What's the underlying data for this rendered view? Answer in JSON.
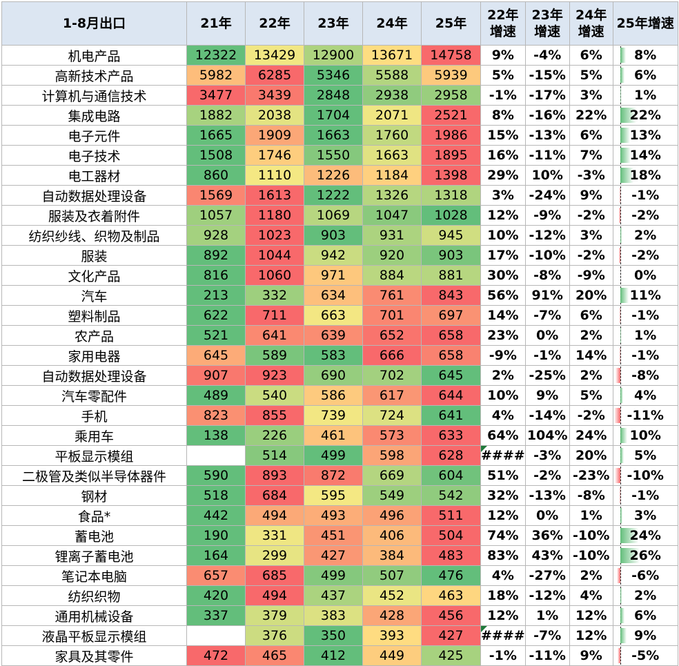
{
  "header": {
    "item": "1-8月出口",
    "years": [
      "21年",
      "22年",
      "23年",
      "24年",
      "25年"
    ],
    "growth": [
      "22年增速",
      "23年增速",
      "24年增速",
      "25年增速"
    ]
  },
  "colors": {
    "header_bg": "#dce6f2",
    "heat_low": "#63be7b",
    "heat_mid": "#ffeb84",
    "heat_high": "#f8696b",
    "bar_positive": "#63be7b",
    "bar_negative": "#f8696b"
  },
  "chart_data": {
    "type": "table",
    "title": "1-8月出口",
    "columns": [
      "21年",
      "22年",
      "23年",
      "24年",
      "25年",
      "22年增速",
      "23年增速",
      "24年增速",
      "25年增速"
    ],
    "rows": [
      {
        "name": "机电产品",
        "values": [
          12322,
          13429,
          12900,
          13671,
          14758
        ],
        "growth": [
          "9%",
          "-4%",
          "6%",
          "8%"
        ]
      },
      {
        "name": "高新技术产品",
        "values": [
          5982,
          6285,
          5346,
          5588,
          5939
        ],
        "growth": [
          "5%",
          "-15%",
          "5%",
          "6%"
        ]
      },
      {
        "name": "计算机与通信技术",
        "values": [
          3477,
          3439,
          2848,
          2938,
          2958
        ],
        "growth": [
          "-1%",
          "-17%",
          "3%",
          "1%"
        ]
      },
      {
        "name": "集成电路",
        "values": [
          1882,
          2038,
          1704,
          2071,
          2521
        ],
        "growth": [
          "8%",
          "-16%",
          "22%",
          "22%"
        ]
      },
      {
        "name": "电子元件",
        "values": [
          1665,
          1909,
          1663,
          1760,
          1986
        ],
        "growth": [
          "15%",
          "-13%",
          "6%",
          "13%"
        ]
      },
      {
        "name": "电子技术",
        "values": [
          1508,
          1746,
          1550,
          1663,
          1895
        ],
        "growth": [
          "16%",
          "-11%",
          "7%",
          "14%"
        ]
      },
      {
        "name": "电工器材",
        "values": [
          860,
          1110,
          1226,
          1184,
          1398
        ],
        "growth": [
          "29%",
          "10%",
          "-3%",
          "18%"
        ]
      },
      {
        "name": "自动数据处理设备",
        "values": [
          1569,
          1613,
          1222,
          1326,
          1318
        ],
        "growth": [
          "3%",
          "-24%",
          "9%",
          "-1%"
        ]
      },
      {
        "name": "服装及衣着附件",
        "values": [
          1057,
          1180,
          1069,
          1047,
          1028
        ],
        "growth": [
          "12%",
          "-9%",
          "-2%",
          "-2%"
        ]
      },
      {
        "name": "纺织纱线、织物及制品",
        "values": [
          928,
          1023,
          903,
          931,
          945
        ],
        "growth": [
          "10%",
          "-12%",
          "3%",
          "2%"
        ]
      },
      {
        "name": "服装",
        "values": [
          892,
          1044,
          942,
          920,
          903
        ],
        "growth": [
          "17%",
          "-10%",
          "-2%",
          "-2%"
        ]
      },
      {
        "name": "文化产品",
        "values": [
          816,
          1060,
          971,
          884,
          881
        ],
        "growth": [
          "30%",
          "-8%",
          "-9%",
          "0%"
        ]
      },
      {
        "name": "汽车",
        "values": [
          213,
          332,
          634,
          761,
          843
        ],
        "growth": [
          "56%",
          "91%",
          "20%",
          "11%"
        ]
      },
      {
        "name": "塑料制品",
        "values": [
          622,
          711,
          663,
          701,
          697
        ],
        "growth": [
          "14%",
          "-7%",
          "6%",
          "-1%"
        ]
      },
      {
        "name": "农产品",
        "values": [
          521,
          641,
          639,
          652,
          658
        ],
        "growth": [
          "23%",
          "0%",
          "2%",
          "1%"
        ]
      },
      {
        "name": "家用电器",
        "values": [
          645,
          589,
          583,
          666,
          658
        ],
        "growth": [
          "-9%",
          "-1%",
          "14%",
          "-1%"
        ]
      },
      {
        "name": "自动数据处理设备",
        "values": [
          907,
          923,
          690,
          702,
          645
        ],
        "growth": [
          "2%",
          "-25%",
          "2%",
          "-8%"
        ]
      },
      {
        "name": "汽车零配件",
        "values": [
          489,
          540,
          586,
          617,
          644
        ],
        "growth": [
          "10%",
          "9%",
          "5%",
          "4%"
        ]
      },
      {
        "name": "手机",
        "values": [
          823,
          855,
          739,
          724,
          641
        ],
        "growth": [
          "4%",
          "-14%",
          "-2%",
          "-11%"
        ]
      },
      {
        "name": "乘用车",
        "values": [
          138,
          226,
          461,
          573,
          633
        ],
        "growth": [
          "64%",
          "104%",
          "24%",
          "10%"
        ]
      },
      {
        "name": "平板显示模组",
        "values": [
          null,
          514,
          499,
          598,
          628
        ],
        "growth": [
          "####",
          "-3%",
          "20%",
          "5%"
        ]
      },
      {
        "name": "二极管及类似半导体器件",
        "values": [
          590,
          893,
          872,
          669,
          604
        ],
        "growth": [
          "51%",
          "-2%",
          "-23%",
          "-10%"
        ]
      },
      {
        "name": "钢材",
        "values": [
          518,
          684,
          595,
          549,
          542
        ],
        "growth": [
          "32%",
          "-13%",
          "-8%",
          "-1%"
        ]
      },
      {
        "name": "食品*",
        "values": [
          442,
          494,
          493,
          496,
          511
        ],
        "growth": [
          "12%",
          "0%",
          "1%",
          "3%"
        ]
      },
      {
        "name": "蓄电池",
        "values": [
          190,
          331,
          451,
          406,
          504
        ],
        "growth": [
          "74%",
          "36%",
          "-10%",
          "24%"
        ]
      },
      {
        "name": "锂离子蓄电池",
        "values": [
          164,
          299,
          427,
          384,
          483
        ],
        "growth": [
          "83%",
          "43%",
          "-10%",
          "26%"
        ]
      },
      {
        "name": "笔记本电脑",
        "values": [
          657,
          685,
          499,
          507,
          476
        ],
        "growth": [
          "4%",
          "-27%",
          "2%",
          "-6%"
        ]
      },
      {
        "name": "纺织织物",
        "values": [
          420,
          494,
          437,
          452,
          463
        ],
        "growth": [
          "18%",
          "-12%",
          "4%",
          "2%"
        ]
      },
      {
        "name": "通用机械设备",
        "values": [
          337,
          379,
          383,
          428,
          456
        ],
        "growth": [
          "12%",
          "1%",
          "12%",
          "6%"
        ]
      },
      {
        "name": "液晶平板显示模组",
        "values": [
          null,
          376,
          350,
          393,
          427
        ],
        "growth": [
          "####",
          "-7%",
          "12%",
          "9%"
        ]
      },
      {
        "name": "家具及其零件",
        "values": [
          472,
          465,
          412,
          449,
          425
        ],
        "growth": [
          "-1%",
          "-11%",
          "9%",
          "-5%"
        ]
      }
    ]
  }
}
